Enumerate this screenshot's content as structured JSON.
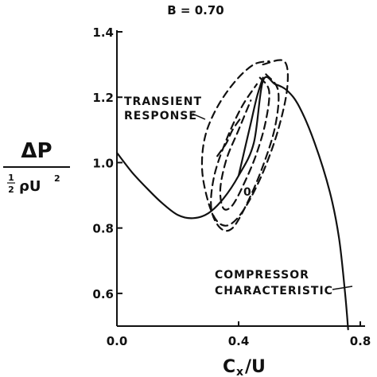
{
  "chart_data": {
    "type": "line",
    "title": "B = 0.70",
    "xlabel": "C_x/U",
    "xlabel_main": "C",
    "xlabel_sub": "x",
    "xlabel_tail": "/U",
    "ylabel": {
      "numerator": "ΔP",
      "denominator_frac_num": "1",
      "denominator_frac_den": "2",
      "denominator_symbols": "ρU",
      "denominator_exp": "2"
    },
    "xlim": [
      0.0,
      0.8
    ],
    "ylim": [
      0.5,
      1.4
    ],
    "x_ticks": [
      "0.0",
      "0.4",
      "0.8"
    ],
    "x_tick_values": [
      0.0,
      0.4,
      0.8
    ],
    "y_ticks": [
      "0.6",
      "0.8",
      "1.0",
      "1.2",
      "1.4"
    ],
    "y_tick_values": [
      0.6,
      0.8,
      1.0,
      1.2,
      1.4
    ],
    "grid": false,
    "series": [
      {
        "style": "solid",
        "x": [
          0.0,
          0.05,
          0.1,
          0.15,
          0.2,
          0.25,
          0.3,
          0.35,
          0.4,
          0.45,
          0.48,
          0.52,
          0.56,
          0.6,
          0.65,
          0.7,
          0.73,
          0.75,
          0.76
        ],
        "y": [
          1.03,
          0.97,
          0.92,
          0.875,
          0.84,
          0.83,
          0.845,
          0.89,
          0.96,
          1.06,
          1.25,
          1.24,
          1.22,
          1.17,
          1.06,
          0.91,
          0.77,
          0.6,
          0.49
        ]
      },
      {
        "style": "solid",
        "x": [
          0.4,
          0.42,
          0.44,
          0.46,
          0.48
        ],
        "y": [
          0.96,
          1.04,
          1.12,
          1.2,
          1.26
        ]
      },
      {
        "style": "dashed",
        "x": [
          0.48,
          0.55,
          0.56,
          0.53,
          0.48,
          0.42,
          0.37,
          0.33,
          0.3,
          0.28,
          0.29,
          0.33,
          0.39,
          0.45,
          0.5
        ],
        "y": [
          1.3,
          1.31,
          1.23,
          1.1,
          0.97,
          0.86,
          0.81,
          0.82,
          0.88,
          0.98,
          1.08,
          1.17,
          1.25,
          1.3,
          1.31
        ]
      },
      {
        "style": "dashed",
        "x": [
          0.49,
          0.53,
          0.52,
          0.48,
          0.43,
          0.38,
          0.34,
          0.31,
          0.32,
          0.36,
          0.41,
          0.46
        ],
        "y": [
          1.27,
          1.22,
          1.11,
          0.99,
          0.88,
          0.8,
          0.8,
          0.86,
          0.96,
          1.07,
          1.17,
          1.24
        ]
      },
      {
        "style": "dashed",
        "x": [
          0.47,
          0.5,
          0.49,
          0.46,
          0.42,
          0.38,
          0.35,
          0.34,
          0.36,
          0.4,
          0.44
        ],
        "y": [
          1.26,
          1.22,
          1.13,
          1.03,
          0.94,
          0.87,
          0.86,
          0.92,
          1.01,
          1.1,
          1.19
        ]
      },
      {
        "style": "dashed",
        "x": [
          0.33,
          0.36,
          0.38,
          0.41
        ],
        "y": [
          1.02,
          1.06,
          1.1,
          1.14
        ]
      }
    ],
    "annotations": [
      {
        "text": "TRANSIENT",
        "line": 1
      },
      {
        "text": "RESPONSE",
        "line": 2
      },
      {
        "text": "COMPRESSOR",
        "line": 1
      },
      {
        "text": "CHARACTERISTIC",
        "line": 2
      },
      {
        "text": "0",
        "marker": true
      }
    ]
  }
}
